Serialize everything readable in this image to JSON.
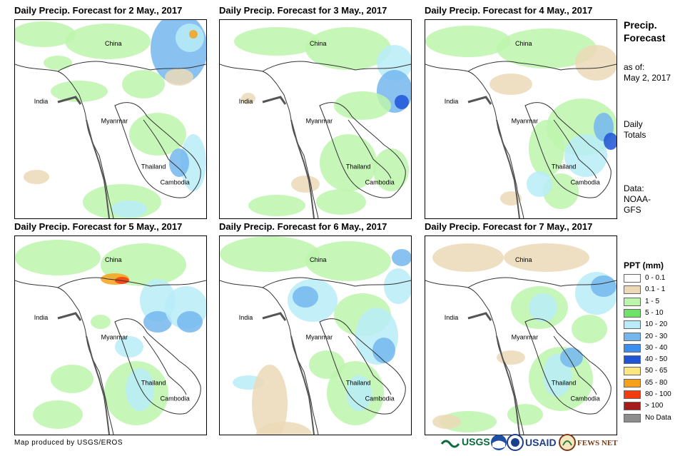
{
  "panels": [
    {
      "title": "Daily Precip. Forecast for 2 May., 2017"
    },
    {
      "title": "Daily Precip. Forecast for 3 May., 2017"
    },
    {
      "title": "Daily Precip. Forecast for 4 May., 2017"
    },
    {
      "title": "Daily Precip. Forecast for 5 May., 2017"
    },
    {
      "title": "Daily Precip. Forecast for 6 May., 2017"
    },
    {
      "title": "Daily Precip. Forecast for 7 May., 2017"
    }
  ],
  "places": {
    "china": "China",
    "india": "India",
    "myanmar": "Myanmar",
    "thailand": "Thailand",
    "cambodia": "Cambodia"
  },
  "sidebar": {
    "title_line1": "Precip.",
    "title_line2": "Forecast",
    "asof_line1": "as of:",
    "asof_line2": "May 2, 2017",
    "daily_line1": "Daily",
    "daily_line2": "Totals",
    "data_line1": "Data:",
    "data_line2": "NOAA-",
    "data_line3": "GFS"
  },
  "legend": {
    "title": "PPT (mm)",
    "items": [
      {
        "label": "0 - 0.1",
        "color": "#ffffff"
      },
      {
        "label": "0.1 - 1",
        "color": "#ecd9b7"
      },
      {
        "label": "1 - 5",
        "color": "#bdf5ad"
      },
      {
        "label": "5 - 10",
        "color": "#6fe26a"
      },
      {
        "label": "10 - 20",
        "color": "#b9ecf8"
      },
      {
        "label": "20 - 30",
        "color": "#74b7ef"
      },
      {
        "label": "30 - 40",
        "color": "#3b8ff0"
      },
      {
        "label": "40 - 50",
        "color": "#1f54d8"
      },
      {
        "label": "50 - 65",
        "color": "#fbe57d"
      },
      {
        "label": "65 - 80",
        "color": "#f7a11a"
      },
      {
        "label": "80 - 100",
        "color": "#f23c10"
      },
      {
        "label": "> 100",
        "color": "#a51c1c"
      },
      {
        "label": "No Data",
        "color": "#8d8d8d"
      }
    ]
  },
  "footer": {
    "credit": "Map produced by USGS/EROS",
    "logo_usgs": "USGS",
    "logo_usaid": "USAID",
    "logo_fewsnet": "FEWS NET"
  }
}
